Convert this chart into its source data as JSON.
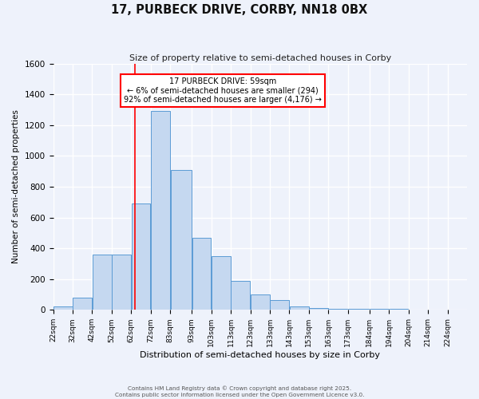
{
  "title": "17, PURBECK DRIVE, CORBY, NN18 0BX",
  "subtitle": "Size of property relative to semi-detached houses in Corby",
  "xlabel": "Distribution of semi-detached houses by size in Corby",
  "ylabel": "Number of semi-detached properties",
  "bin_labels": [
    "22sqm",
    "32sqm",
    "42sqm",
    "52sqm",
    "62sqm",
    "72sqm",
    "83sqm",
    "93sqm",
    "103sqm",
    "113sqm",
    "123sqm",
    "133sqm",
    "143sqm",
    "153sqm",
    "163sqm",
    "173sqm",
    "184sqm",
    "194sqm",
    "204sqm",
    "214sqm",
    "224sqm"
  ],
  "bin_edges": [
    17,
    27,
    37,
    47,
    57,
    67,
    77,
    88,
    98,
    108,
    118,
    128,
    138,
    148,
    158,
    168,
    179,
    189,
    199,
    209,
    219,
    229
  ],
  "bar_values": [
    25,
    80,
    360,
    360,
    690,
    1290,
    910,
    470,
    350,
    190,
    100,
    65,
    25,
    10,
    5,
    5,
    5,
    5,
    0,
    0,
    0
  ],
  "bar_color": "#c5d8f0",
  "bar_edge_color": "#5b9bd5",
  "vline_x": 59,
  "vline_color": "red",
  "annotation_title": "17 PURBECK DRIVE: 59sqm",
  "annotation_line1": "← 6% of semi-detached houses are smaller (294)",
  "annotation_line2": "92% of semi-detached houses are larger (4,176) →",
  "annotation_box_color": "white",
  "annotation_box_edge": "red",
  "ylim": [
    0,
    1600
  ],
  "yticks": [
    0,
    200,
    400,
    600,
    800,
    1000,
    1200,
    1400,
    1600
  ],
  "background_color": "#eef2fb",
  "grid_color": "white",
  "footer1": "Contains HM Land Registry data © Crown copyright and database right 2025.",
  "footer2": "Contains public sector information licensed under the Open Government Licence v3.0."
}
